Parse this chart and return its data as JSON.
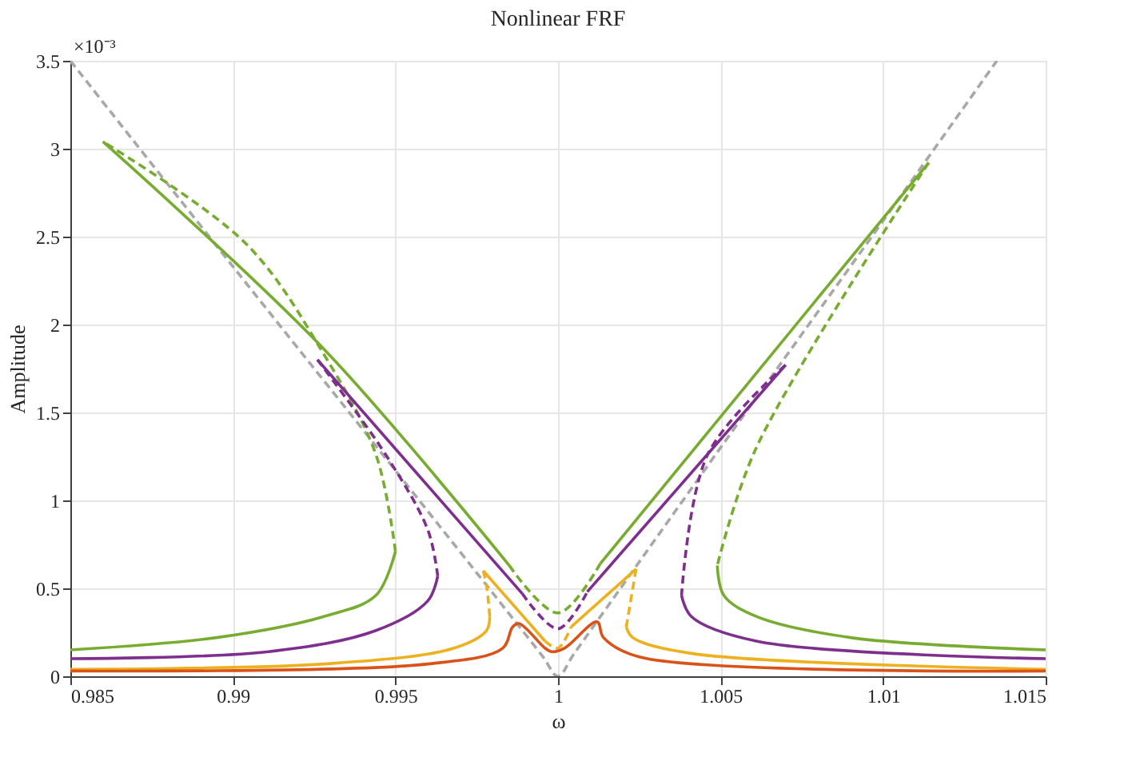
{
  "chart_data": {
    "type": "line",
    "title": "Nonlinear FRF",
    "xlabel": "ω",
    "ylabel": "Amplitude",
    "annotations": [
      "×10⁻³"
    ],
    "xlim": [
      0.985,
      1.015
    ],
    "xticks": [
      0.985,
      0.99,
      0.995,
      1,
      1.005,
      1.01,
      1.015
    ],
    "ylim": [
      0,
      3.5
    ],
    "yticks": [
      0,
      0.5,
      1,
      1.5,
      2,
      2.5,
      3,
      3.5
    ],
    "grid": true,
    "marker": "none",
    "series": [
      {
        "color": "#a8a8a8",
        "line_style": "dashed",
        "x": [
          0.985,
          0.99,
          0.995,
          0.9995,
          1.0,
          1.0005,
          1.005,
          1.01,
          1.0135
        ],
        "values": [
          3.5,
          2.33,
          1.17,
          0.12,
          0,
          0.13,
          1.3,
          2.59,
          3.5
        ]
      },
      {
        "color": "#77ac30",
        "line_style": "solid",
        "x": [
          0.985,
          0.9895,
          0.9928,
          0.9944,
          0.995
        ],
        "values": [
          0.15,
          0.22,
          0.34,
          0.46,
          0.71
        ]
      },
      {
        "color": "#77ac30",
        "line_style": "dashed",
        "x": [
          0.995,
          0.9944,
          0.9928,
          0.9904,
          0.986
        ],
        "values": [
          0.71,
          1.26,
          1.83,
          2.46,
          3.04
        ]
      },
      {
        "color": "#77ac30",
        "line_style": "solid",
        "x": [
          0.986,
          0.9928,
          0.9985
        ],
        "values": [
          3.04,
          1.86,
          0.63
        ]
      },
      {
        "color": "#77ac30",
        "line_style": "dashed",
        "x": [
          0.9985,
          1.0,
          1.0013
        ],
        "values": [
          0.63,
          0.36,
          0.64
        ]
      },
      {
        "color": "#77ac30",
        "line_style": "solid",
        "x": [
          1.0013,
          1.0114
        ],
        "values": [
          0.64,
          2.92
        ]
      },
      {
        "color": "#77ac30",
        "line_style": "dashed",
        "x": [
          1.0114,
          1.0061,
          1.0049
        ],
        "values": [
          2.92,
          1.3,
          0.63
        ]
      },
      {
        "color": "#77ac30",
        "line_style": "solid",
        "x": [
          1.0049,
          1.0051,
          1.0061,
          1.009,
          1.015
        ],
        "values": [
          0.63,
          0.46,
          0.34,
          0.22,
          0.15
        ]
      },
      {
        "color": "#7e2f8e",
        "line_style": "solid",
        "x": [
          0.985,
          0.9911,
          0.9944,
          0.996,
          0.9963
        ],
        "values": [
          0.1,
          0.14,
          0.26,
          0.43,
          0.57
        ]
      },
      {
        "color": "#7e2f8e",
        "line_style": "dashed",
        "x": [
          0.9963,
          0.996,
          0.9947,
          0.9926
        ],
        "values": [
          0.57,
          0.83,
          1.26,
          1.8
        ]
      },
      {
        "color": "#7e2f8e",
        "line_style": "solid",
        "x": [
          0.9926,
          0.9989
        ],
        "values": [
          1.8,
          0.47
        ]
      },
      {
        "color": "#7e2f8e",
        "line_style": "dashed",
        "x": [
          0.9989,
          1.0,
          1.0009
        ],
        "values": [
          0.47,
          0.27,
          0.48
        ]
      },
      {
        "color": "#7e2f8e",
        "line_style": "solid",
        "x": [
          1.0009,
          1.007
        ],
        "values": [
          0.48,
          1.77
        ]
      },
      {
        "color": "#7e2f8e",
        "line_style": "dashed",
        "x": [
          1.007,
          1.0046,
          1.0038
        ],
        "values": [
          1.77,
          1.26,
          0.46
        ]
      },
      {
        "color": "#7e2f8e",
        "line_style": "solid",
        "x": [
          1.0038,
          1.0041,
          1.0061,
          1.015
        ],
        "values": [
          0.46,
          0.34,
          0.2,
          0.1
        ]
      },
      {
        "color": "#edb120",
        "line_style": "solid",
        "x": [
          0.985,
          0.9928,
          0.9968,
          0.9978,
          0.9979
        ],
        "values": [
          0.04,
          0.07,
          0.16,
          0.26,
          0.34
        ]
      },
      {
        "color": "#edb120",
        "line_style": "dashed",
        "x": [
          0.9979,
          0.9978,
          0.9977
        ],
        "values": [
          0.34,
          0.52,
          0.6
        ]
      },
      {
        "color": "#edb120",
        "line_style": "solid",
        "x": [
          0.9977,
          0.9996
        ],
        "values": [
          0.6,
          0.2
        ]
      },
      {
        "color": "#edb120",
        "line_style": "dashed",
        "x": [
          0.9996,
          1.0,
          1.0004
        ],
        "values": [
          0.2,
          0.16,
          0.28
        ]
      },
      {
        "color": "#edb120",
        "line_style": "solid",
        "x": [
          1.0004,
          1.0024
        ],
        "values": [
          0.28,
          0.61
        ]
      },
      {
        "color": "#edb120",
        "line_style": "dashed",
        "x": [
          1.0024,
          1.0021
        ],
        "values": [
          0.61,
          0.28
        ]
      },
      {
        "color": "#edb120",
        "line_style": "solid",
        "x": [
          1.0021,
          1.0023,
          1.0041,
          1.015
        ],
        "values": [
          0.28,
          0.22,
          0.13,
          0.04
        ]
      },
      {
        "color": "#d95319",
        "line_style": "solid",
        "x": [
          0.985,
          0.996,
          0.9983,
          0.9986,
          0.9988,
          0.9996,
          0.9998,
          1.0002,
          1.0012,
          1.0014,
          1.0025,
          1.015
        ],
        "values": [
          0.03,
          0.07,
          0.16,
          0.28,
          0.3,
          0.16,
          0.14,
          0.16,
          0.31,
          0.22,
          0.11,
          0.03
        ]
      }
    ]
  }
}
